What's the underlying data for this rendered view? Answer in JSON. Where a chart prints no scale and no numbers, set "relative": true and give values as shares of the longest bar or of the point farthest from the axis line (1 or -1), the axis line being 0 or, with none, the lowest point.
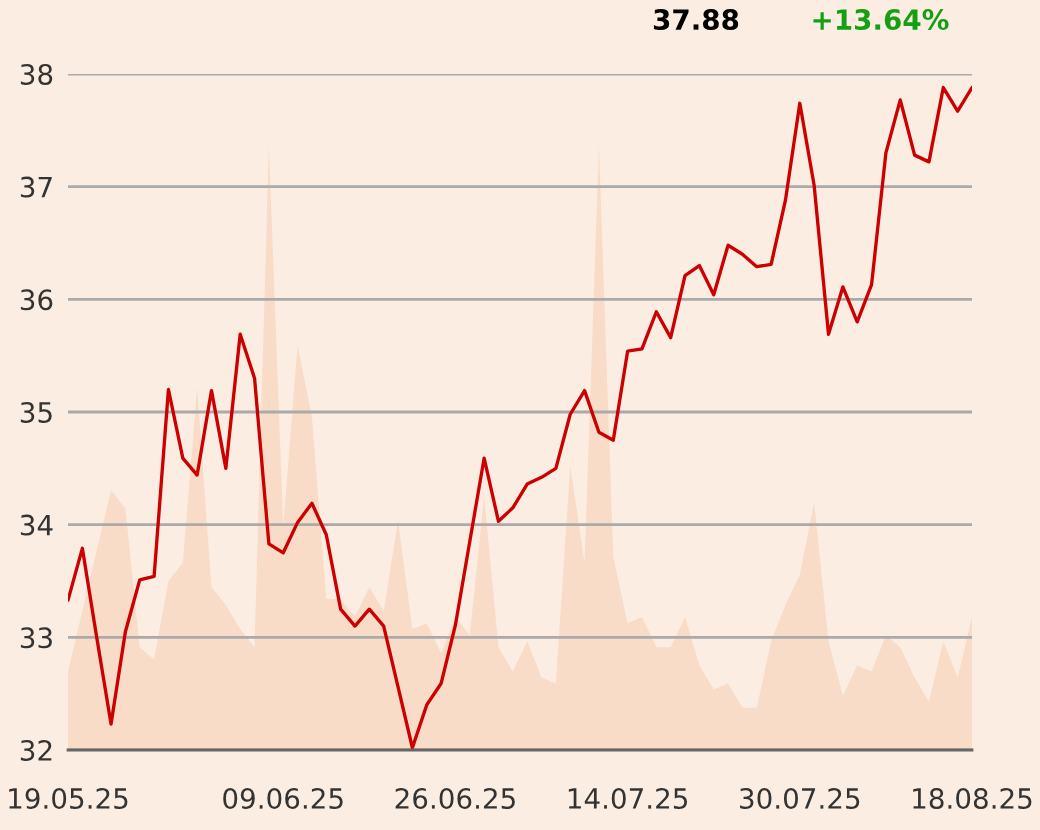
{
  "chart_data": [
    {
      "type": "line",
      "categories": [
        "19.05.25",
        null,
        null,
        null,
        null,
        null,
        null,
        null,
        null,
        null,
        null,
        null,
        null,
        null,
        null,
        "09.06.25",
        null,
        null,
        null,
        null,
        null,
        null,
        null,
        null,
        null,
        null,
        null,
        "26.06.25",
        null,
        null,
        null,
        null,
        null,
        null,
        null,
        null,
        null,
        null,
        null,
        "14.07.25",
        null,
        null,
        null,
        null,
        null,
        null,
        null,
        null,
        null,
        null,
        null,
        "30.07.25",
        null,
        null,
        null,
        null,
        null,
        null,
        null,
        null,
        null,
        null,
        null,
        "18.08.25"
      ],
      "series": [
        {
          "color": "#cc0000",
          "values": [
            33.33,
            33.79,
            33.0,
            32.23,
            33.05,
            33.51,
            33.54,
            35.2,
            34.59,
            34.44,
            35.19,
            34.5,
            35.69,
            35.3,
            33.83,
            33.75,
            34.02,
            34.19,
            33.91,
            33.25,
            33.1,
            33.25,
            33.1,
            32.56,
            32.02,
            32.4,
            32.59,
            33.11,
            33.85,
            34.59,
            34.03,
            34.15,
            34.36,
            34.42,
            34.5,
            34.98,
            35.19,
            34.82,
            34.75,
            35.54,
            35.56,
            35.89,
            35.66,
            36.21,
            36.3,
            36.04,
            36.48,
            36.4,
            36.29,
            36.31,
            36.88,
            37.74,
            37.01,
            35.69,
            36.11,
            35.8,
            36.13,
            37.3,
            37.77,
            37.28,
            37.22,
            37.88,
            37.67,
            37.88
          ]
        }
      ],
      "ylim": [
        32,
        38
      ],
      "yticks": [
        32,
        33,
        34,
        35,
        36,
        37,
        38
      ],
      "grid": "y",
      "annotations": [
        "37.88",
        "+13.64%"
      ]
    },
    {
      "type": "area",
      "relative": true,
      "tick_labels": false,
      "categories": [
        "19.05.25",
        null,
        null,
        null,
        null,
        null,
        null,
        null,
        null,
        null,
        null,
        null,
        null,
        null,
        null,
        "09.06.25",
        null,
        null,
        null,
        null,
        null,
        null,
        null,
        null,
        null,
        null,
        null,
        "26.06.25",
        null,
        null,
        null,
        null,
        null,
        null,
        null,
        null,
        null,
        null,
        null,
        "14.07.25",
        null,
        null,
        null,
        null,
        null,
        null,
        null,
        null,
        null,
        null,
        null,
        "30.07.25",
        null,
        null,
        null,
        null,
        null,
        null,
        null,
        null,
        null,
        null,
        null,
        "18.08.25"
      ],
      "series": [
        {
          "color": "#f8dcc7",
          "values": [
            0.13,
            0.23,
            0.33,
            0.43,
            0.4,
            0.17,
            0.15,
            0.28,
            0.31,
            0.6,
            0.27,
            0.24,
            0.2,
            0.17,
            1.0,
            0.37,
            0.67,
            0.55,
            0.25,
            0.25,
            0.22,
            0.27,
            0.23,
            0.38,
            0.2,
            0.21,
            0.16,
            0.22,
            0.19,
            0.42,
            0.17,
            0.13,
            0.18,
            0.12,
            0.11,
            0.47,
            0.31,
            1.0,
            0.32,
            0.21,
            0.22,
            0.17,
            0.17,
            0.22,
            0.14,
            0.1,
            0.11,
            0.07,
            0.07,
            0.18,
            0.24,
            0.29,
            0.41,
            0.18,
            0.09,
            0.14,
            0.13,
            0.19,
            0.17,
            0.12,
            0.08,
            0.18,
            0.12,
            0.22
          ]
        }
      ]
    }
  ]
}
